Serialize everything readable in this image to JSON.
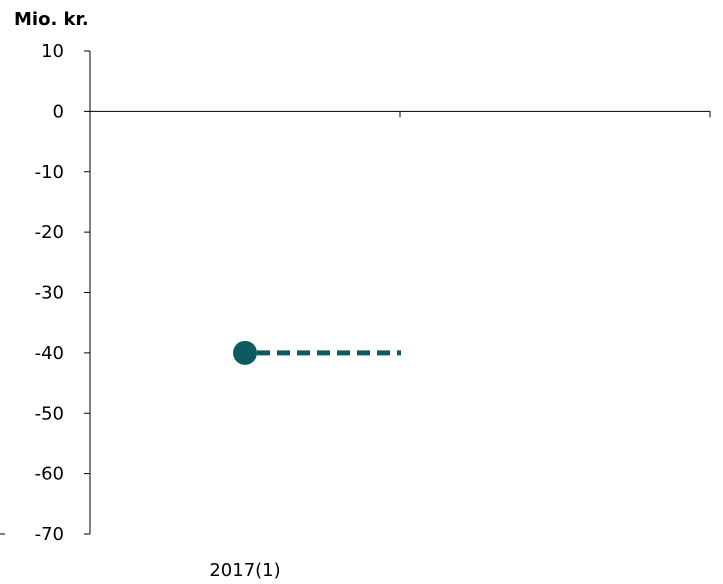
{
  "chart_data": {
    "type": "line",
    "unit_label": "Mio. kr.",
    "categories": [
      "2017(1)"
    ],
    "ylim": [
      -70,
      10
    ],
    "yticks": [
      10,
      0,
      -10,
      -20,
      -30,
      -40,
      -50,
      -60,
      -70
    ],
    "ytick_labels": [
      "10",
      "0",
      "-10",
      "-20",
      "-30",
      "-40",
      "-50",
      "-60",
      "-70"
    ],
    "series": [
      {
        "values": [
          -40
        ],
        "marker": "circle",
        "line_style": "dashed",
        "color": "#0d5b5e",
        "extends_to_x_fraction": 0.75
      }
    ],
    "grid": false,
    "legend": "none"
  }
}
